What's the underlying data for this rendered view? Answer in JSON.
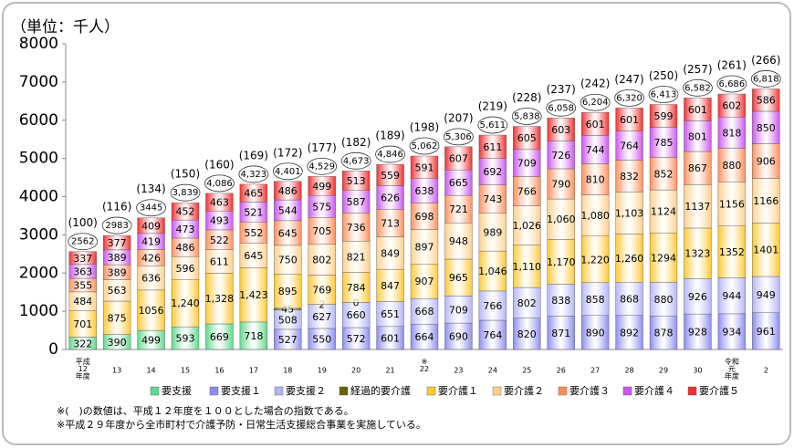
{
  "chart_data": {
    "type": "stacked_bar",
    "unit_label": "（単位：千人）",
    "categories": [
      "平成\n12\n年度",
      "13",
      "14",
      "15",
      "16",
      "17",
      "18",
      "19",
      "20",
      "21",
      "※\n22",
      "23",
      "24",
      "25",
      "26",
      "27",
      "28",
      "29",
      "30",
      "令和\n元\n年度",
      "2"
    ],
    "series": [
      {
        "name": "要支援",
        "color": "#5fd98a",
        "values": [
          322,
          390,
          499,
          593,
          669,
          718,
          null,
          null,
          null,
          null,
          null,
          null,
          null,
          null,
          null,
          null,
          null,
          null,
          null,
          null,
          null
        ]
      },
      {
        "name": "要支援１",
        "color": "#8c8cf0",
        "values": [
          null,
          null,
          null,
          null,
          null,
          null,
          527,
          550,
          572,
          601,
          664,
          690,
          764,
          820,
          871,
          890,
          892,
          878,
          928,
          934,
          961
        ]
      },
      {
        "name": "要支援２",
        "color": "#b4b4f8",
        "values": [
          null,
          null,
          null,
          null,
          null,
          null,
          508,
          627,
          660,
          651,
          668,
          709,
          766,
          802,
          838,
          858,
          868,
          880,
          926,
          944,
          949
        ]
      },
      {
        "name": "経過的要介護",
        "color": "#666600",
        "values": [
          null,
          null,
          null,
          null,
          null,
          null,
          45,
          2,
          0,
          null,
          null,
          null,
          null,
          null,
          null,
          null,
          null,
          null,
          null,
          null,
          null
        ]
      },
      {
        "name": "要介護１",
        "color": "#ffc833",
        "values": [
          701,
          875,
          1056,
          1240,
          1328,
          1423,
          895,
          769,
          784,
          847,
          907,
          965,
          1046,
          1110,
          1170,
          1220,
          1260,
          1294,
          1323,
          1352,
          1401
        ],
        "value_labels": [
          "701",
          "875",
          "1056",
          "1,240",
          "1,328",
          "1,423",
          "895",
          "769",
          "784",
          "847",
          "907",
          "965",
          "1,046",
          "1,110",
          "1,170",
          "1,220",
          "1,260",
          "1294",
          "1323",
          "1352",
          "1401"
        ]
      },
      {
        "name": "要介護２",
        "color": "#ffd08a",
        "values": [
          484,
          563,
          636,
          596,
          611,
          645,
          750,
          802,
          821,
          849,
          897,
          948,
          989,
          1026,
          1060,
          1080,
          1103,
          1124,
          1137,
          1156,
          1166
        ],
        "value_labels": [
          "484",
          "563",
          "636",
          "596",
          "611",
          "645",
          "750",
          "802",
          "821",
          "849",
          "897",
          "948",
          "989",
          "1,026",
          "1,060",
          "1,080",
          "1,103",
          "1124",
          "1137",
          "1156",
          "1166"
        ]
      },
      {
        "name": "要介護３",
        "color": "#ff8f5a",
        "values": [
          355,
          389,
          426,
          486,
          522,
          552,
          645,
          705,
          736,
          713,
          698,
          721,
          743,
          766,
          790,
          810,
          832,
          852,
          867,
          880,
          906
        ]
      },
      {
        "name": "要介護４",
        "color": "#cc55ee",
        "values": [
          363,
          389,
          419,
          473,
          493,
          521,
          544,
          575,
          587,
          626,
          638,
          665,
          692,
          709,
          726,
          744,
          764,
          785,
          801,
          818,
          850
        ]
      },
      {
        "name": "要介護５",
        "color": "#f03030",
        "values": [
          337,
          377,
          409,
          452,
          463,
          465,
          486,
          499,
          513,
          559,
          591,
          607,
          611,
          605,
          603,
          601,
          601,
          599,
          601,
          602,
          586
        ]
      }
    ],
    "totals": {
      "values": [
        2562,
        2983,
        3445,
        3839,
        4086,
        4323,
        4401,
        4529,
        4673,
        4846,
        5062,
        5306,
        5611,
        5838,
        6058,
        6204,
        6320,
        6413,
        6582,
        6686,
        6818
      ],
      "value_labels": [
        "2562",
        "2983",
        "3445",
        "3,839",
        "4,086",
        "4,323",
        "4,401",
        "4,529",
        "4,673",
        "4,846",
        "5,062",
        "5,306",
        "5,611",
        "5,838",
        "6,058",
        "6,204",
        "6,320",
        "6,413",
        "6,582",
        "6,686",
        "6,818"
      ]
    },
    "indices": {
      "values": [
        100,
        116,
        134,
        150,
        160,
        169,
        172,
        177,
        182,
        189,
        198,
        207,
        219,
        228,
        237,
        242,
        247,
        250,
        257,
        261,
        266
      ],
      "value_labels": [
        "(100)",
        "(116)",
        "(134)",
        "(150)",
        "(160)",
        "(169)",
        "(172)",
        "(177)",
        "(182)",
        "(189)",
        "(198)",
        "(207)",
        "(219)",
        "(228)",
        "(237)",
        "(242)",
        "(247)",
        "(250)",
        "(257)",
        "(261)",
        "(266)"
      ]
    },
    "ylim": [
      0,
      8000
    ],
    "yticks": [
      0,
      1000,
      2000,
      3000,
      4000,
      5000,
      6000,
      7000,
      8000
    ],
    "notes": [
      "※(　)の数値は、平成１２年度を１００とした場合の指数である。",
      "※平成２９年度から全市町村で介護予防・日常生活支援総合事業を実施している。"
    ]
  }
}
